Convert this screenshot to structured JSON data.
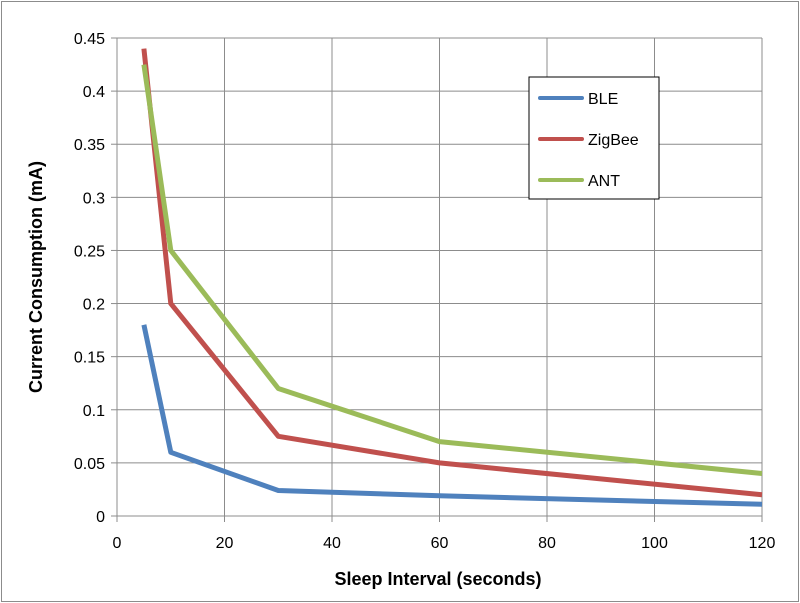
{
  "chart_data": {
    "type": "line",
    "title": "",
    "xlabel": "Sleep Interval (seconds)",
    "ylabel": "Current Consumption (mA)",
    "xlim": [
      0,
      120
    ],
    "ylim": [
      0,
      0.45
    ],
    "xticks": [
      0,
      20,
      40,
      60,
      80,
      100,
      120
    ],
    "xtick_labels": [
      "0",
      "20",
      "40",
      "60",
      "80",
      "100",
      "120"
    ],
    "yticks": [
      0,
      0.05,
      0.1,
      0.15,
      0.2,
      0.25,
      0.3,
      0.35,
      0.4,
      0.45
    ],
    "ytick_labels": [
      "0",
      "0.05",
      "0.1",
      "0.15",
      "0.2",
      "0.25",
      "0.3",
      "0.35",
      "0.4",
      "0.45"
    ],
    "grid": true,
    "legend_position": "top-right",
    "series": [
      {
        "name": "BLE",
        "color": "#4f81bd",
        "x": [
          5,
          10,
          30,
          60,
          120
        ],
        "y": [
          0.18,
          0.06,
          0.024,
          0.019,
          0.011
        ]
      },
      {
        "name": "ZigBee",
        "color": "#c0504d",
        "x": [
          5,
          10,
          30,
          60,
          120
        ],
        "y": [
          0.44,
          0.2,
          0.075,
          0.05,
          0.02
        ]
      },
      {
        "name": "ANT",
        "color": "#9bbb59",
        "x": [
          5,
          10,
          30,
          60,
          120
        ],
        "y": [
          0.425,
          0.25,
          0.12,
          0.07,
          0.04
        ]
      }
    ]
  }
}
